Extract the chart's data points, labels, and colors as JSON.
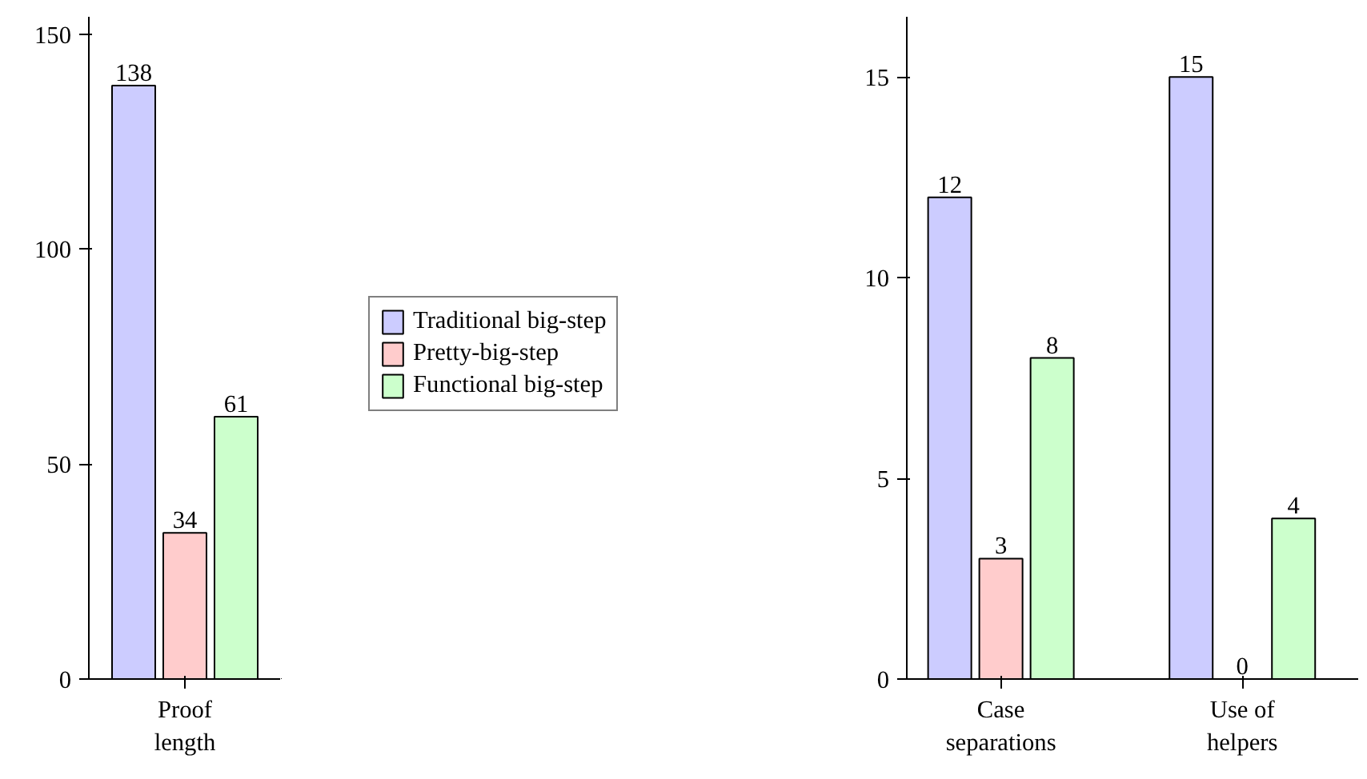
{
  "chart_data": [
    {
      "type": "bar",
      "categories": [
        "Proof\nlength"
      ],
      "ylim": [
        0,
        154
      ],
      "yticks": [
        0,
        50,
        100,
        150
      ],
      "data_labels": true,
      "legend": "right",
      "grid": false,
      "series": [
        {
          "name": "Traditional big-step",
          "color": "#ccccff",
          "values": [
            138
          ]
        },
        {
          "name": "Pretty-big-step",
          "color": "#ffcccc",
          "values": [
            34
          ]
        },
        {
          "name": "Functional big-step",
          "color": "#ccffcc",
          "values": [
            61
          ]
        }
      ]
    },
    {
      "type": "bar",
      "categories": [
        "Case\nseparations",
        "Use of\nhelpers"
      ],
      "ylim": [
        0,
        16.5
      ],
      "yticks": [
        0,
        5,
        10,
        15
      ],
      "data_labels": true,
      "grid": false,
      "series": [
        {
          "color": "#ccccff",
          "values": [
            12,
            15
          ]
        },
        {
          "color": "#ffcccc",
          "values": [
            3,
            0
          ]
        },
        {
          "color": "#ccffcc",
          "values": [
            8,
            4
          ]
        }
      ]
    }
  ]
}
